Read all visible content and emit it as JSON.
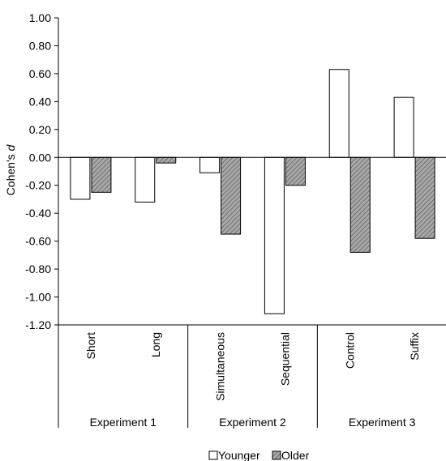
{
  "chart_data": {
    "type": "bar",
    "title": "",
    "xlabel": "",
    "ylabel": "Cohen's d",
    "ylabel_parts": {
      "prefix": "Cohen's ",
      "symbol": "d"
    },
    "ylim": [
      -1.2,
      1.0
    ],
    "yticks": [
      "1.00",
      "0.80",
      "0.60",
      "0.40",
      "0.20",
      "0.00",
      "-0.20",
      "-0.40",
      "-0.60",
      "-0.80",
      "-1.00",
      "-1.20"
    ],
    "categories": [
      "Short",
      "Long",
      "Simultaneous",
      "Sequential",
      "Control",
      "Suffix"
    ],
    "groups": [
      {
        "label": "Experiment 1",
        "categories": [
          "Short",
          "Long"
        ]
      },
      {
        "label": "Experiment 2",
        "categories": [
          "Simultaneous",
          "Sequential"
        ]
      },
      {
        "label": "Experiment 3",
        "categories": [
          "Control",
          "Suffix"
        ]
      }
    ],
    "series": [
      {
        "name": "Younger",
        "values": [
          -0.3,
          -0.32,
          -0.11,
          -1.12,
          0.63,
          0.43
        ]
      },
      {
        "name": "Older",
        "values": [
          -0.25,
          -0.04,
          -0.55,
          -0.2,
          -0.68,
          -0.58
        ]
      }
    ],
    "grid": false,
    "legend_position": "bottom"
  },
  "colors": {
    "younger_fill": "#ffffff",
    "older_fill": "#a9a9a9",
    "stroke": "#000000"
  }
}
